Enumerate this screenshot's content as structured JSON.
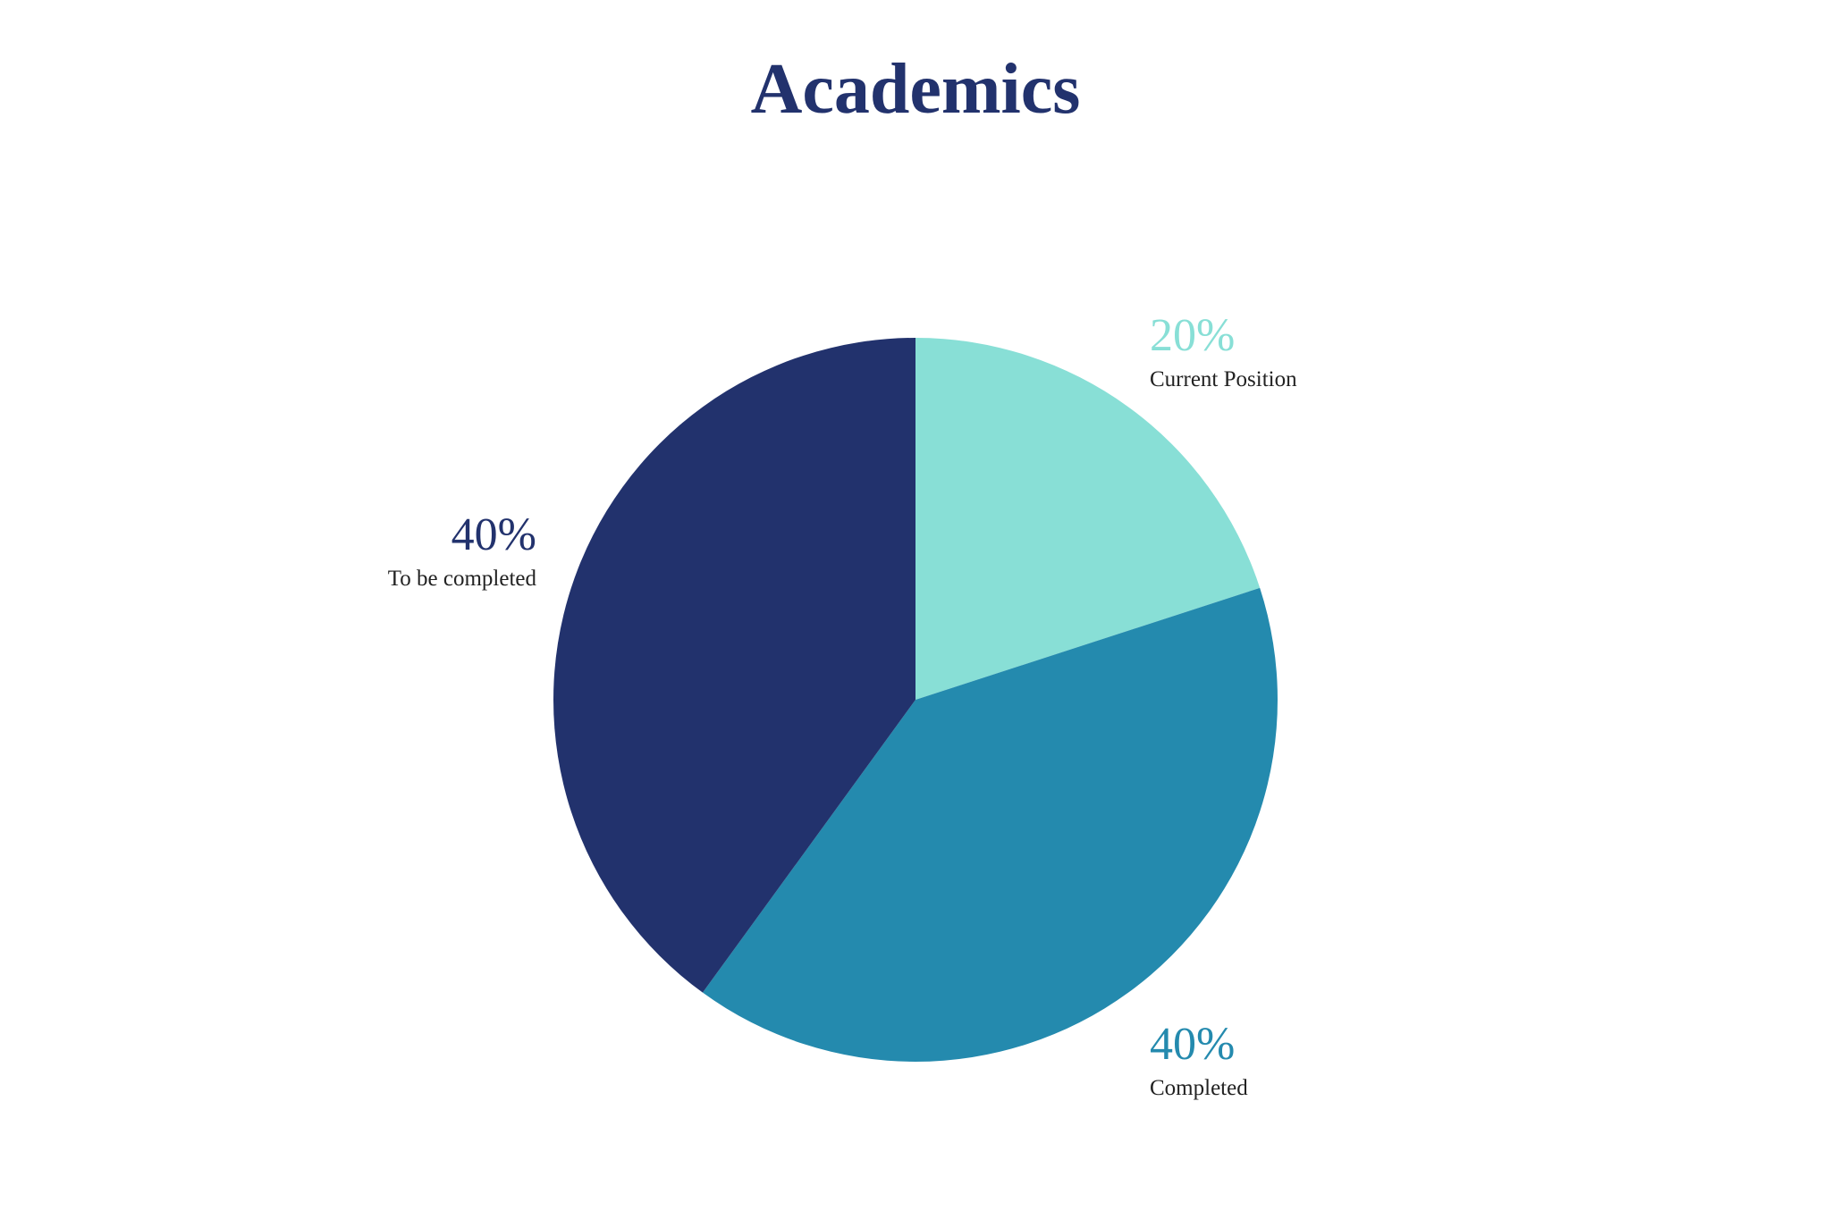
{
  "chart_data": {
    "type": "pie",
    "title": "Academics",
    "slices": [
      {
        "label": "Current Position",
        "value": 20,
        "value_label": "20%",
        "color": "#88dfd6"
      },
      {
        "label": "Completed",
        "value": 40,
        "value_label": "40%",
        "color": "#248aae"
      },
      {
        "label": "To be completed",
        "value": 40,
        "value_label": "40%",
        "color": "#22326d"
      }
    ],
    "start_angle": "12 o'clock",
    "direction": "clockwise",
    "legend": "none"
  },
  "colors": {
    "title": "#22326d",
    "label_text": "#222222",
    "background": "#ffffff"
  }
}
